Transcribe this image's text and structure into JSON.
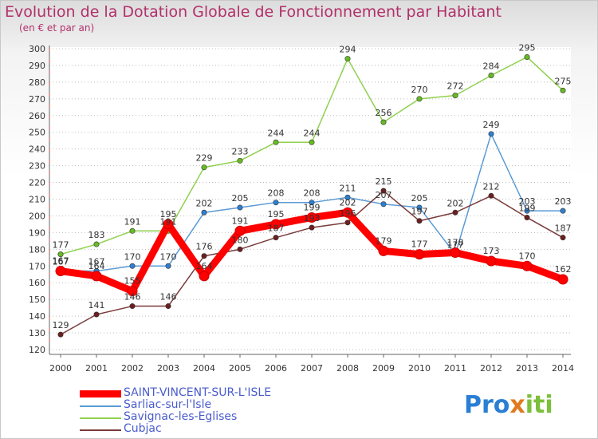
{
  "title": "Evolution de la Dotation Globale de Fonctionnement par Habitant",
  "subtitle": "(en € et par an)",
  "logo": {
    "part1": "Pro",
    "part2": "x",
    "part3": "iti"
  },
  "colors": {
    "title": "#b2306a",
    "axis_text": "#333333",
    "grid": "#bdbdbd"
  },
  "chart_data": {
    "type": "line",
    "title": "Evolution de la Dotation Globale de Fonctionnement par Habitant",
    "subtitle": "(en € et par an)",
    "xlabel": "",
    "ylabel": "",
    "x": [
      "2000",
      "2001",
      "2002",
      "2003",
      "2004",
      "2005",
      "2006",
      "2007",
      "2008",
      "2009",
      "2010",
      "2011",
      "2012",
      "2013",
      "2014"
    ],
    "ylim": [
      120,
      300
    ],
    "yticks": [
      120,
      130,
      140,
      150,
      160,
      170,
      180,
      190,
      200,
      210,
      220,
      230,
      240,
      250,
      260,
      270,
      280,
      290,
      300
    ],
    "grid": "horizontal dotted",
    "legend_position": "bottom-left",
    "series": [
      {
        "name": "SAINT-VINCENT-SUR-L'ISLE",
        "color": "#ff0000",
        "marker_color": "#ff0000",
        "thick": true,
        "values": [
          167,
          164,
          155,
          195,
          164,
          191,
          195,
          199,
          202,
          179,
          177,
          178,
          173,
          170,
          162
        ],
        "labels": [
          "167",
          "164",
          "155",
          "195",
          "164",
          "191",
          "195",
          "199",
          "202",
          "179",
          "177",
          "178",
          "173",
          "170",
          "162"
        ]
      },
      {
        "name": "Sarliac-sur-l'Isle",
        "color": "#5b9bd5",
        "marker_color": "#2f7fd0",
        "thick": false,
        "values": [
          167,
          167,
          170,
          170,
          202,
          205,
          208,
          208,
          211,
          207,
          205,
          177,
          249,
          203,
          203
        ],
        "labels": [
          "167",
          "167",
          "170",
          "170",
          "202",
          "205",
          "208",
          "208",
          "211",
          "207",
          "205",
          "177",
          "249",
          "203",
          "203"
        ]
      },
      {
        "name": "Savignac-les-Eglises",
        "color": "#8fd14f",
        "marker_color": "#66bb22",
        "thick": false,
        "values": [
          177,
          183,
          191,
          191,
          229,
          233,
          244,
          244,
          294,
          256,
          270,
          272,
          284,
          295,
          275
        ],
        "labels": [
          "177",
          "183",
          "191",
          "191",
          "229",
          "233",
          "244",
          "244",
          "294",
          "256",
          "270",
          "272",
          "284",
          "295",
          "275"
        ]
      },
      {
        "name": "Cubjac",
        "color": "#7a3a3a",
        "marker_color": "#6b1f1f",
        "thick": false,
        "values": [
          129,
          141,
          146,
          146,
          176,
          180,
          187,
          193,
          196,
          215,
          197,
          202,
          212,
          199,
          187
        ],
        "labels": [
          "129",
          "141",
          "146",
          "146",
          "176",
          "180",
          "187",
          "193",
          "196",
          "215",
          "197",
          "202",
          "212",
          "199",
          "187"
        ]
      }
    ]
  }
}
